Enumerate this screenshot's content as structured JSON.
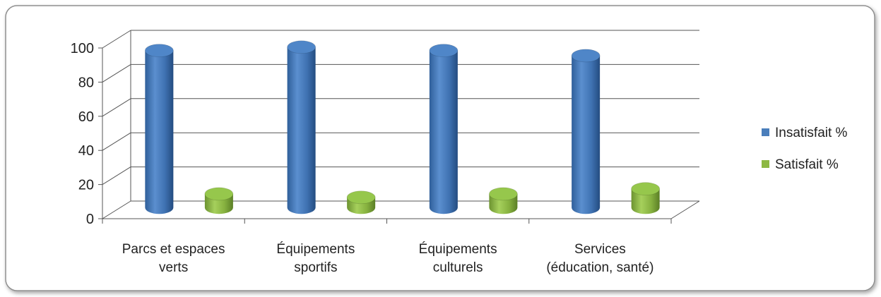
{
  "chart_data": {
    "type": "bar",
    "categories": [
      [
        "Parcs et espaces",
        "verts"
      ],
      [
        "Équipements",
        "sportifs"
      ],
      [
        "Équipements",
        "culturels"
      ],
      [
        "Services",
        "(éducation, santé)"
      ]
    ],
    "series": [
      {
        "name": "Insatisfait %",
        "values": [
          92,
          94,
          92,
          89
        ],
        "color": "#4a7ebb"
      },
      {
        "name": "Satisfait %",
        "values": [
          8,
          6,
          8,
          11
        ],
        "color": "#8db843"
      }
    ],
    "y_ticks": [
      "0",
      "20",
      "40",
      "60",
      "80",
      "100"
    ],
    "ylim": [
      0,
      100
    ],
    "grid": true,
    "legend": "right",
    "bar_shape": "cylinder"
  }
}
